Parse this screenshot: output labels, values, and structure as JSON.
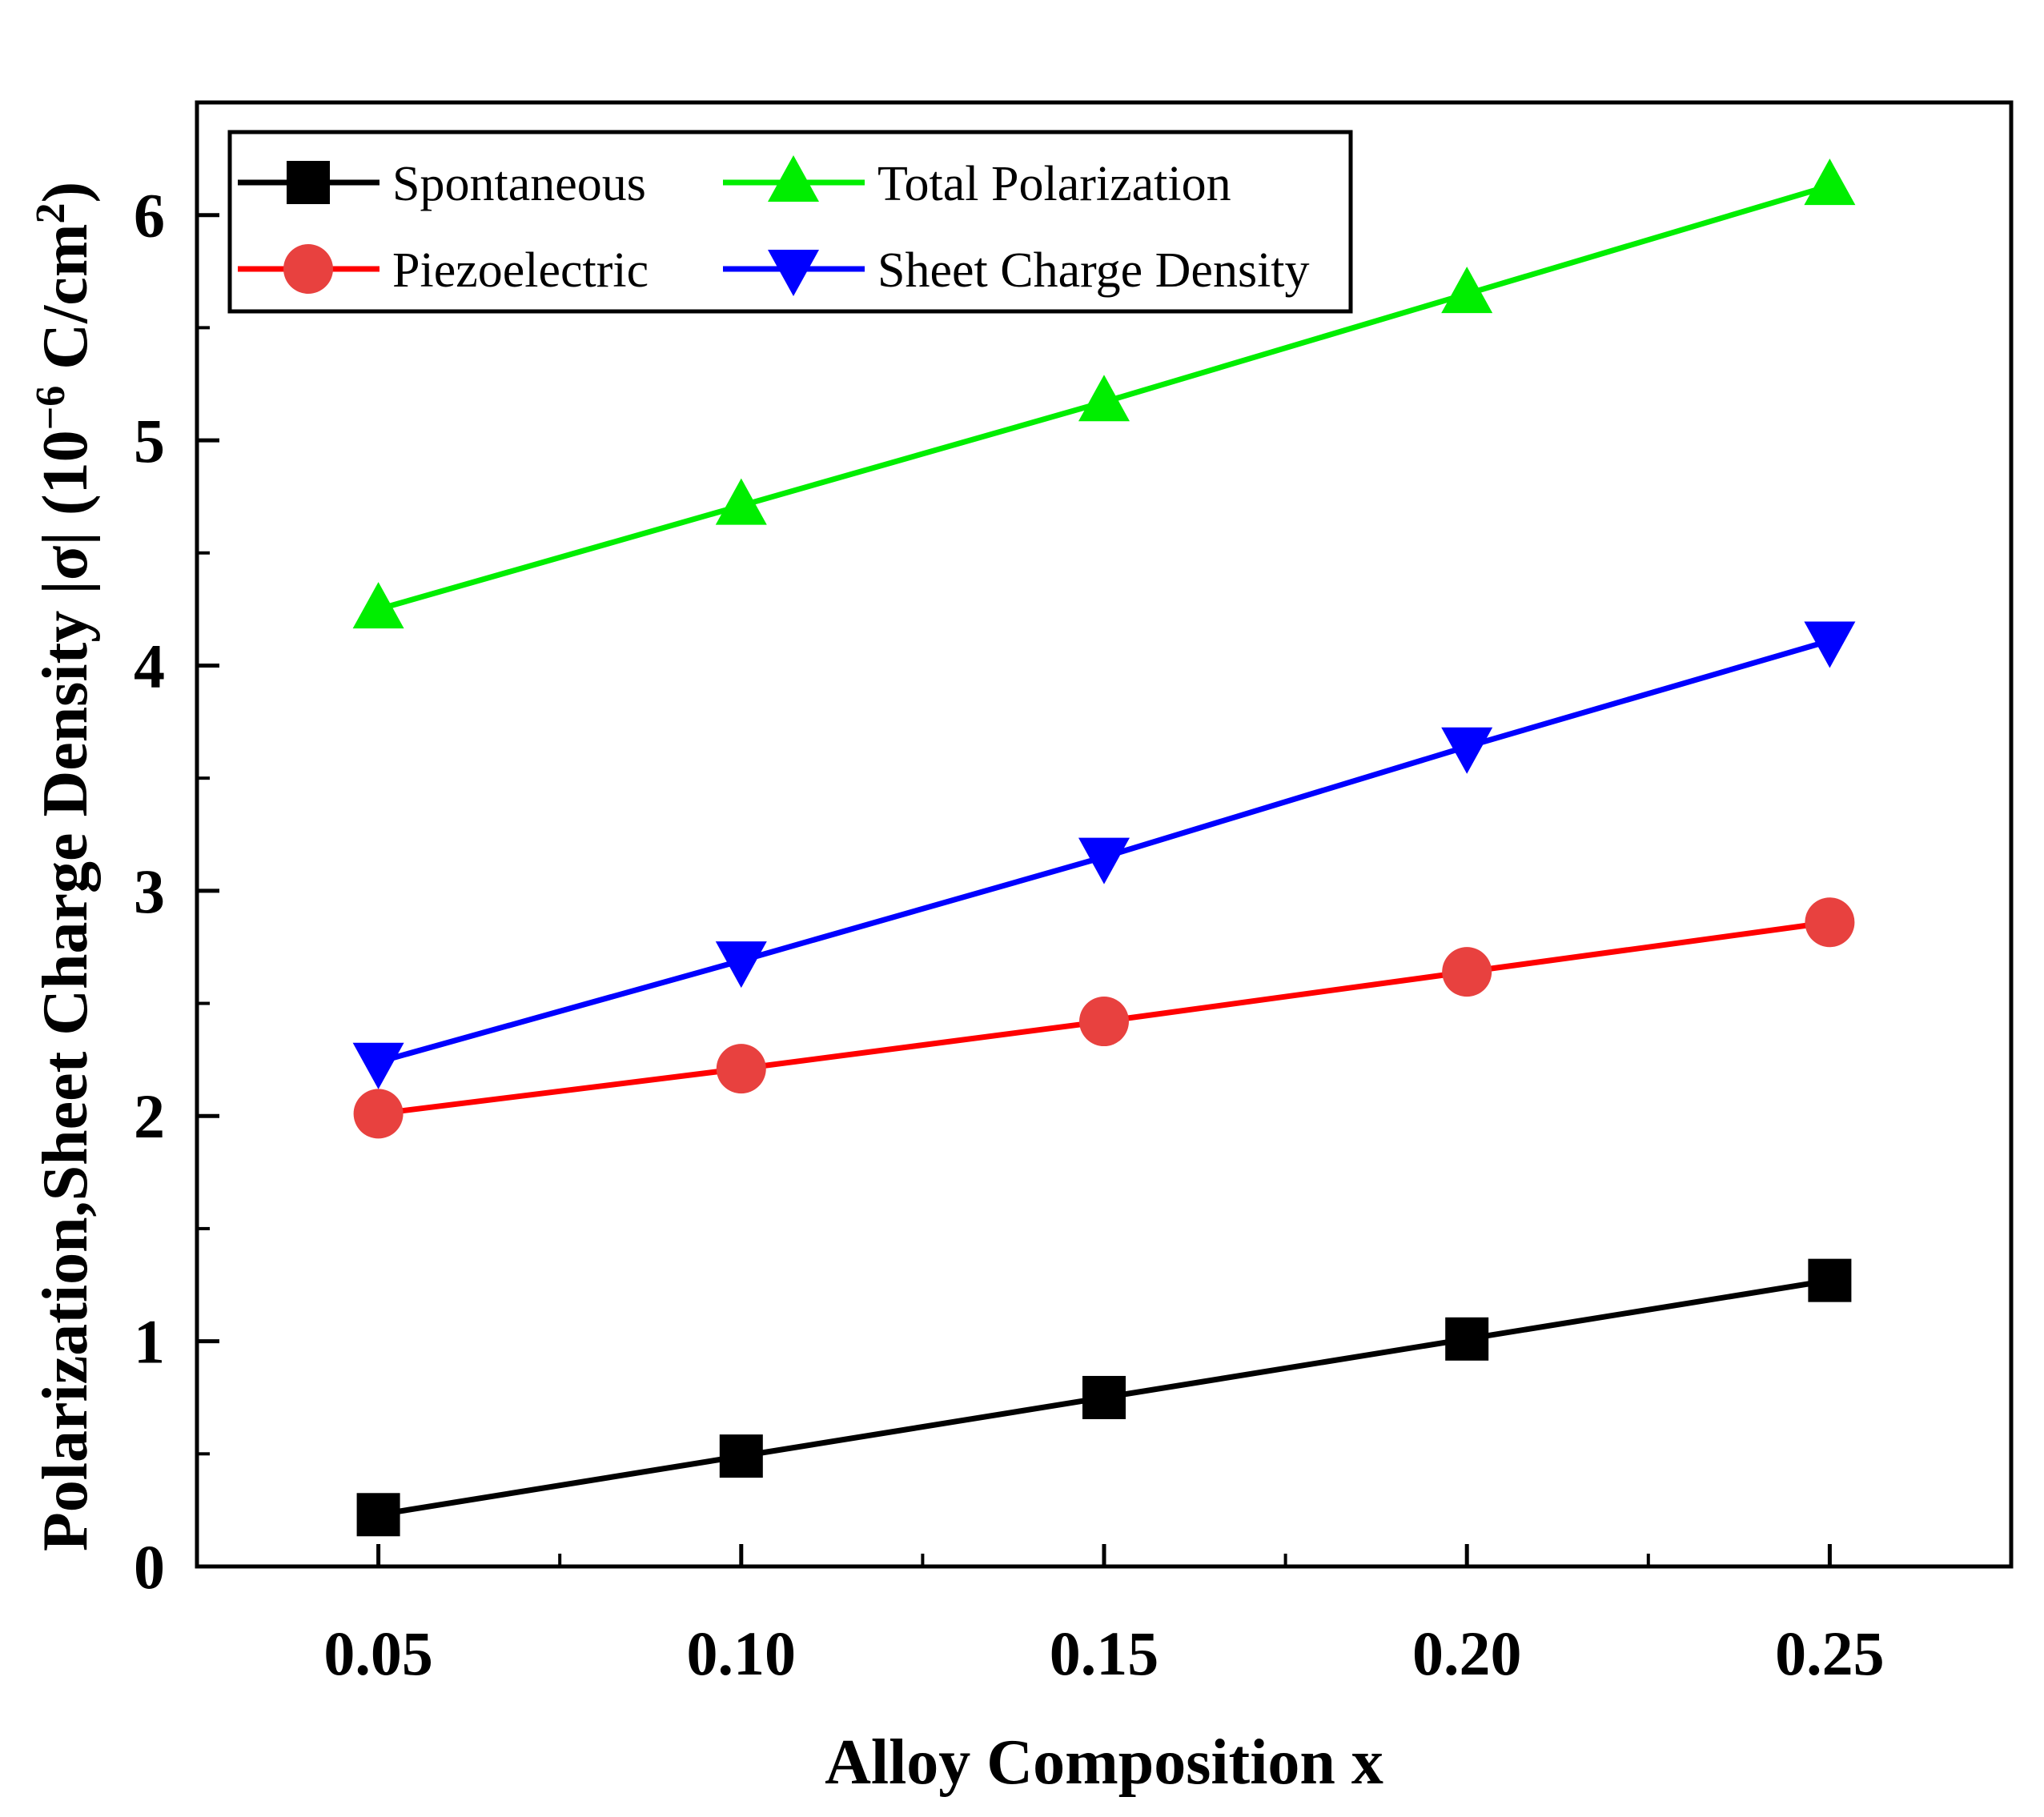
{
  "chart_data": {
    "type": "line",
    "title": "",
    "xlabel": "Alloy Composition x",
    "ylabel": {
      "main": "Polarization,Sheet Charge Density |σ| (10",
      "sup1": "−6",
      "mid": " C/cm",
      "sup2": "2",
      "end": ")"
    },
    "x": [
      0.05,
      0.1,
      0.15,
      0.2,
      0.25
    ],
    "x_tick_labels": [
      "0.05",
      "0.10",
      "0.15",
      "0.20",
      "0.25"
    ],
    "y_tick_labels": [
      "0",
      "1",
      "2",
      "3",
      "4",
      "5",
      "6"
    ],
    "y_ticks": [
      0,
      1,
      2,
      3,
      4,
      5,
      6
    ],
    "xlim": [
      0.025,
      0.275
    ],
    "ylim": [
      0,
      6.5
    ],
    "grid": false,
    "legend_position": "top-left",
    "series": [
      {
        "name": "Spontaneous",
        "color": "#000000",
        "marker": "square",
        "values": [
          0.23,
          0.49,
          0.75,
          1.01,
          1.27
        ]
      },
      {
        "name": "Piezoelectric",
        "color": "#ff0000",
        "marker_color": "#e8413f",
        "marker": "circle",
        "values": [
          2.01,
          2.21,
          2.42,
          2.64,
          2.86
        ]
      },
      {
        "name": "Total Polarization",
        "color": "#00ee00",
        "marker": "triangle-up",
        "values": [
          4.25,
          4.71,
          5.17,
          5.65,
          6.13
        ]
      },
      {
        "name": "Sheet Charge Density",
        "color": "#0000ff",
        "marker": "triangle-down",
        "values": [
          2.24,
          2.69,
          3.15,
          3.64,
          4.11
        ]
      }
    ]
  }
}
